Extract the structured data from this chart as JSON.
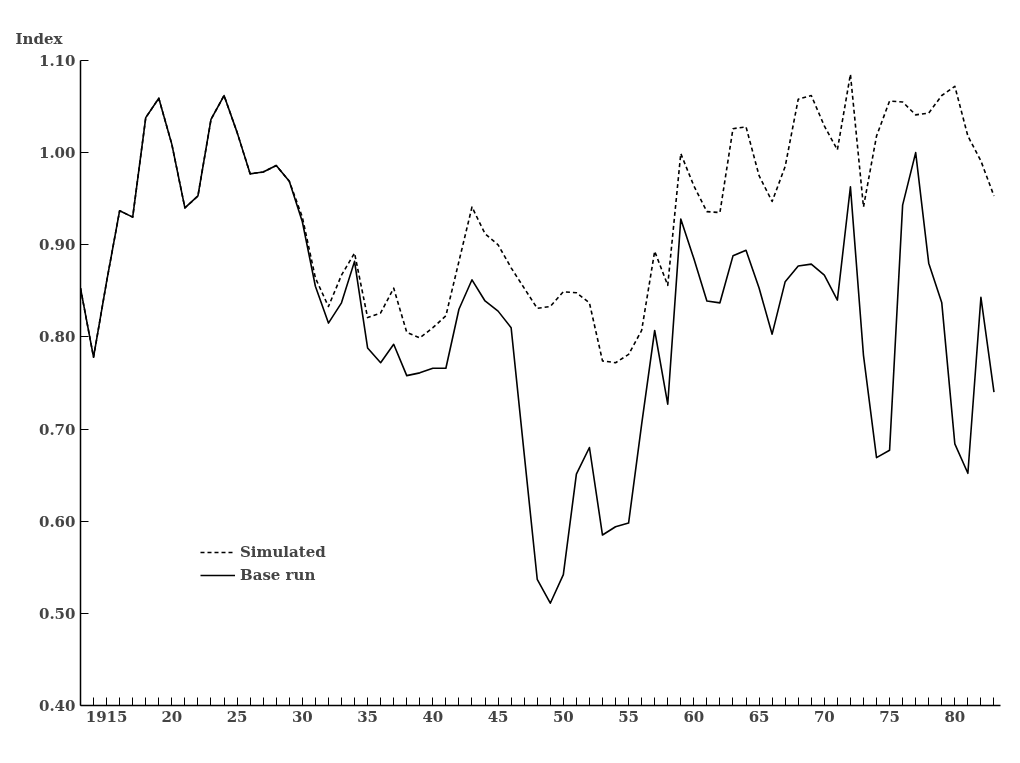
{
  "chart_data": {
    "type": "line",
    "ylabel": "Index",
    "x": [
      1913,
      1914,
      1915,
      1916,
      1917,
      1918,
      1919,
      1920,
      1921,
      1922,
      1923,
      1924,
      1925,
      1926,
      1927,
      1928,
      1929,
      1930,
      1931,
      1932,
      1933,
      1934,
      1935,
      1936,
      1937,
      1938,
      1939,
      1940,
      1941,
      1942,
      1943,
      1944,
      1945,
      1946,
      1947,
      1948,
      1949,
      1950,
      1951,
      1952,
      1953,
      1954,
      1955,
      1956,
      1957,
      1958,
      1959,
      1960,
      1961,
      1962,
      1963,
      1964,
      1965,
      1966,
      1967,
      1968,
      1969,
      1970,
      1971,
      1972,
      1973,
      1974,
      1975,
      1976,
      1977,
      1978,
      1979,
      1980,
      1981,
      1982,
      1983
    ],
    "series": [
      {
        "name": "Simulated",
        "color": "#000000",
        "line_style": "dashed",
        "values": [
          0.853,
          0.778,
          0.86,
          0.937,
          0.93,
          1.038,
          1.059,
          1.009,
          0.94,
          0.953,
          1.036,
          1.062,
          1.022,
          0.977,
          0.979,
          0.986,
          0.969,
          0.93,
          0.864,
          0.833,
          0.867,
          0.891,
          0.821,
          0.826,
          0.853,
          0.805,
          0.799,
          0.81,
          0.823,
          0.882,
          0.941,
          0.912,
          0.9,
          0.875,
          0.853,
          0.831,
          0.833,
          0.849,
          0.848,
          0.837,
          0.774,
          0.772,
          0.781,
          0.807,
          0.893,
          0.856,
          0.999,
          0.964,
          0.936,
          0.935,
          1.026,
          1.028,
          0.975,
          0.947,
          0.985,
          1.058,
          1.062,
          1.029,
          1.003,
          1.085,
          0.941,
          1.018,
          1.056,
          1.055,
          1.041,
          1.043,
          1.062,
          1.072,
          1.018,
          0.991,
          0.953
        ]
      },
      {
        "name": "Base run",
        "color": "#000000",
        "line_style": "solid",
        "values": [
          0.853,
          0.778,
          0.86,
          0.937,
          0.93,
          1.038,
          1.059,
          1.009,
          0.94,
          0.953,
          1.036,
          1.062,
          1.022,
          0.977,
          0.979,
          0.986,
          0.969,
          0.925,
          0.855,
          0.815,
          0.837,
          0.882,
          0.788,
          0.772,
          0.792,
          0.758,
          0.761,
          0.766,
          0.766,
          0.83,
          0.862,
          0.839,
          0.828,
          0.81,
          0.673,
          0.537,
          0.511,
          0.542,
          0.651,
          0.68,
          0.585,
          0.594,
          0.598,
          0.705,
          0.807,
          0.727,
          0.928,
          0.885,
          0.839,
          0.837,
          0.888,
          0.894,
          0.853,
          0.803,
          0.86,
          0.877,
          0.879,
          0.867,
          0.84,
          0.963,
          0.78,
          0.669,
          0.677,
          0.943,
          1.0,
          0.88,
          0.837,
          0.684,
          0.652,
          0.843,
          0.74
        ]
      }
    ],
    "xlim": [
      1913,
      1983.5
    ],
    "ylim": [
      0.4,
      1.1
    ],
    "xticks": [
      {
        "value": 1914,
        "label": null
      },
      1915,
      {
        "value": 1916,
        "label": null
      },
      {
        "value": 1917,
        "label": null
      },
      {
        "value": 1918,
        "label": null
      },
      {
        "value": 1919,
        "label": null
      },
      {
        "value": 1920,
        "label": "20"
      },
      {
        "value": 1921,
        "label": null
      },
      {
        "value": 1922,
        "label": null
      },
      {
        "value": 1923,
        "label": null
      },
      {
        "value": 1924,
        "label": null
      },
      {
        "value": 1925,
        "label": "25"
      },
      {
        "value": 1926,
        "label": null
      },
      {
        "value": 1927,
        "label": null
      },
      {
        "value": 1928,
        "label": null
      },
      {
        "value": 1929,
        "label": null
      },
      {
        "value": 1930,
        "label": "30"
      },
      {
        "value": 1931,
        "label": null
      },
      {
        "value": 1932,
        "label": null
      },
      {
        "value": 1933,
        "label": null
      },
      {
        "value": 1934,
        "label": null
      },
      {
        "value": 1935,
        "label": "35"
      },
      {
        "value": 1936,
        "label": null
      },
      {
        "value": 1937,
        "label": null
      },
      {
        "value": 1938,
        "label": null
      },
      {
        "value": 1939,
        "label": null
      },
      {
        "value": 1940,
        "label": "40"
      },
      {
        "value": 1941,
        "label": null
      },
      {
        "value": 1942,
        "label": null
      },
      {
        "value": 1943,
        "label": null
      },
      {
        "value": 1944,
        "label": null
      },
      {
        "value": 1945,
        "label": "45"
      },
      {
        "value": 1946,
        "label": null
      },
      {
        "value": 1947,
        "label": null
      },
      {
        "value": 1948,
        "label": null
      },
      {
        "value": 1949,
        "label": null
      },
      {
        "value": 1950,
        "label": "50"
      },
      {
        "value": 1951,
        "label": null
      },
      {
        "value": 1952,
        "label": null
      },
      {
        "value": 1953,
        "label": null
      },
      {
        "value": 1954,
        "label": null
      },
      {
        "value": 1955,
        "label": "55"
      },
      {
        "value": 1956,
        "label": null
      },
      {
        "value": 1957,
        "label": null
      },
      {
        "value": 1958,
        "label": null
      },
      {
        "value": 1959,
        "label": null
      },
      {
        "value": 1960,
        "label": "60"
      },
      {
        "value": 1961,
        "label": null
      },
      {
        "value": 1962,
        "label": null
      },
      {
        "value": 1963,
        "label": null
      },
      {
        "value": 1964,
        "label": null
      },
      {
        "value": 1965,
        "label": "65"
      },
      {
        "value": 1966,
        "label": null
      },
      {
        "value": 1967,
        "label": null
      },
      {
        "value": 1968,
        "label": null
      },
      {
        "value": 1969,
        "label": null
      },
      {
        "value": 1970,
        "label": "70"
      },
      {
        "value": 1971,
        "label": null
      },
      {
        "value": 1972,
        "label": null
      },
      {
        "value": 1973,
        "label": null
      },
      {
        "value": 1974,
        "label": null
      },
      {
        "value": 1975,
        "label": "75"
      },
      {
        "value": 1976,
        "label": null
      },
      {
        "value": 1977,
        "label": null
      },
      {
        "value": 1978,
        "label": null
      },
      {
        "value": 1979,
        "label": null
      },
      {
        "value": 1980,
        "label": "80"
      },
      {
        "value": 1981,
        "label": null
      },
      {
        "value": 1982,
        "label": null
      },
      {
        "value": 1983,
        "label": null
      }
    ],
    "yticks": [
      {
        "value": 0.4,
        "label": "0.40"
      },
      {
        "value": 0.5,
        "label": "0.50"
      },
      {
        "value": 0.6,
        "label": "0.60"
      },
      {
        "value": 0.7,
        "label": "0.70"
      },
      {
        "value": 0.8,
        "label": "0.80"
      },
      {
        "value": 0.9,
        "label": "0.90"
      },
      {
        "value": 1.0,
        "label": "1.00"
      },
      {
        "value": 1.1,
        "label": "1.10"
      }
    ],
    "grid": false,
    "legend": "bottom left"
  }
}
